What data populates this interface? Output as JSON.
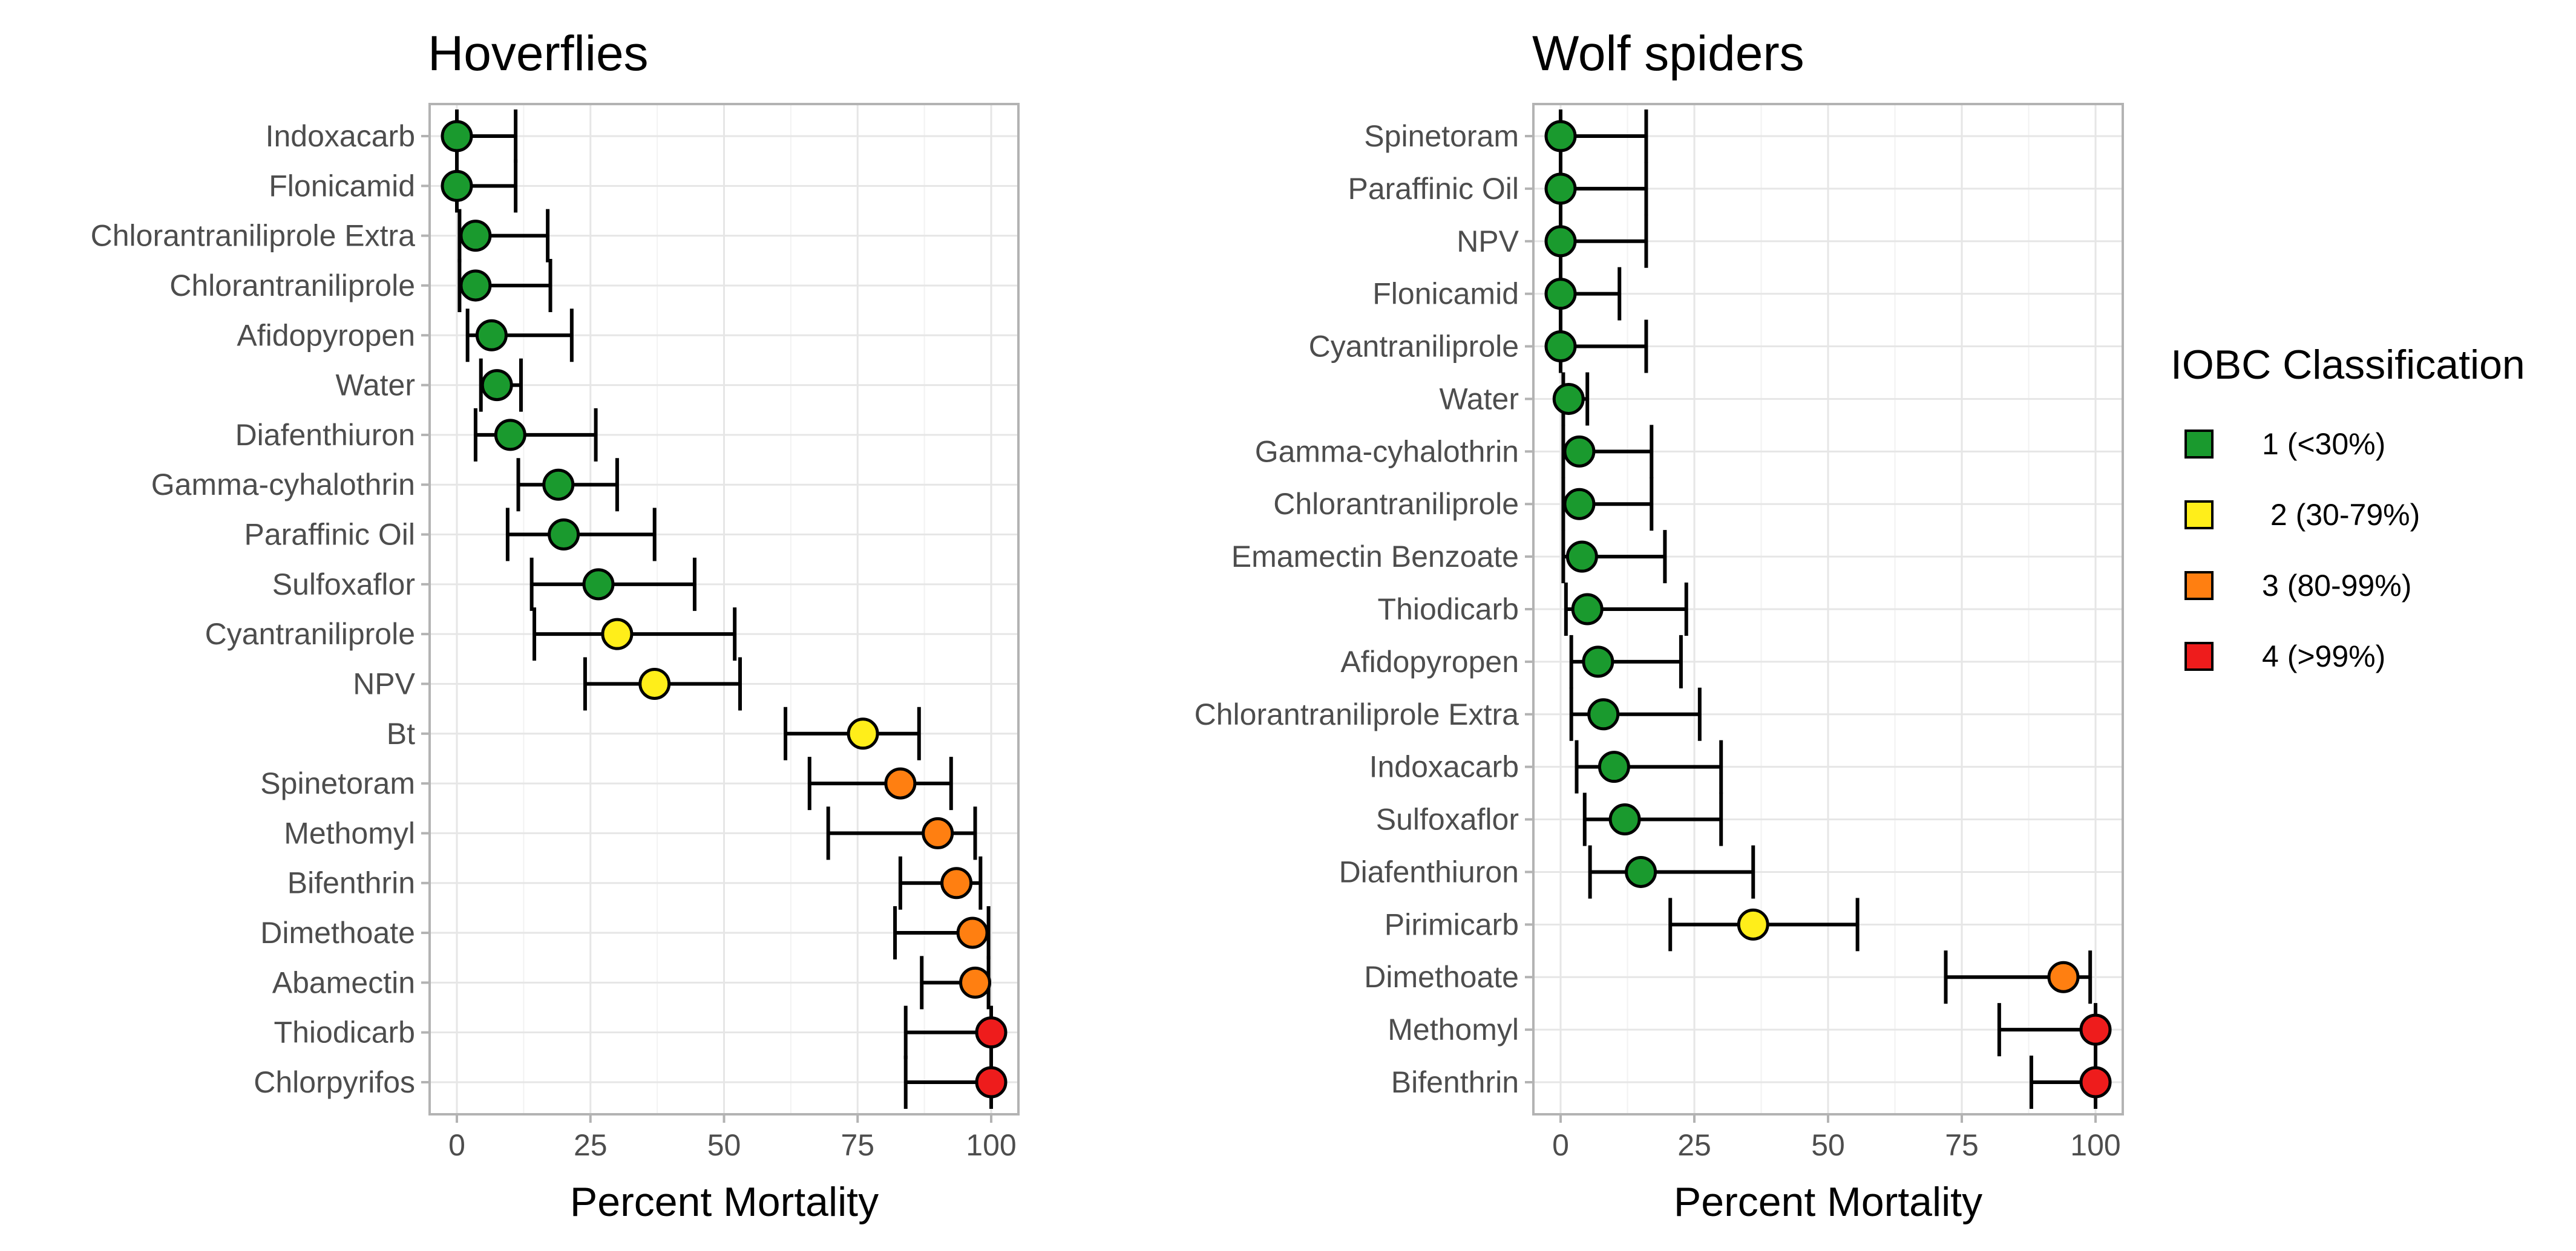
{
  "chart_data": [
    {
      "type": "scatter",
      "subtype": "dot-with-error-bars",
      "title": "Hoverflies",
      "xlabel": "Percent Mortality",
      "ylabel": "",
      "xlim": [
        0,
        100
      ],
      "xticks": [
        0,
        25,
        50,
        75,
        100
      ],
      "grid": true,
      "points": [
        {
          "label": "Indoxacarb",
          "value": 0,
          "lo": 0,
          "hi": 11,
          "class": 1
        },
        {
          "label": "Flonicamid",
          "value": 0,
          "lo": 0,
          "hi": 11,
          "class": 1
        },
        {
          "label": "Chlorantraniliprole Extra",
          "value": 3.5,
          "lo": 0.5,
          "hi": 17,
          "class": 1
        },
        {
          "label": "Chlorantraniliprole",
          "value": 3.5,
          "lo": 0.5,
          "hi": 17.5,
          "class": 1
        },
        {
          "label": "Afidopyropen",
          "value": 6.5,
          "lo": 2,
          "hi": 21.5,
          "class": 1
        },
        {
          "label": "Water",
          "value": 7.5,
          "lo": 4.5,
          "hi": 12,
          "class": 1
        },
        {
          "label": "Diafenthiuron",
          "value": 10,
          "lo": 3.5,
          "hi": 26,
          "class": 1
        },
        {
          "label": "Gamma-cyhalothrin",
          "value": 19,
          "lo": 11.5,
          "hi": 30,
          "class": 1
        },
        {
          "label": "Paraffinic Oil",
          "value": 20,
          "lo": 9.5,
          "hi": 37,
          "class": 1
        },
        {
          "label": "Sulfoxaflor",
          "value": 26.5,
          "lo": 14,
          "hi": 44.5,
          "class": 1
        },
        {
          "label": "Cyantraniliprole",
          "value": 30,
          "lo": 14.5,
          "hi": 52,
          "class": 2
        },
        {
          "label": "NPV",
          "value": 37,
          "lo": 24,
          "hi": 53,
          "class": 2
        },
        {
          "label": "Bt",
          "value": 76,
          "lo": 61.5,
          "hi": 86.5,
          "class": 2
        },
        {
          "label": "Spinetoram",
          "value": 83,
          "lo": 66,
          "hi": 92.5,
          "class": 3
        },
        {
          "label": "Methomyl",
          "value": 90,
          "lo": 69.5,
          "hi": 97,
          "class": 3
        },
        {
          "label": "Bifenthrin",
          "value": 93.5,
          "lo": 83,
          "hi": 98,
          "class": 3
        },
        {
          "label": "Dimethoate",
          "value": 96.5,
          "lo": 82,
          "hi": 99.5,
          "class": 3
        },
        {
          "label": "Abamectin",
          "value": 97,
          "lo": 87,
          "hi": 99.5,
          "class": 3
        },
        {
          "label": "Thiodicarb",
          "value": 100,
          "lo": 84,
          "hi": 100,
          "class": 4
        },
        {
          "label": "Chlorpyrifos",
          "value": 100,
          "lo": 84,
          "hi": 100,
          "class": 4
        }
      ]
    },
    {
      "type": "scatter",
      "subtype": "dot-with-error-bars",
      "title": "Wolf spiders",
      "xlabel": "Percent Mortality",
      "ylabel": "",
      "xlim": [
        0,
        100
      ],
      "xticks": [
        0,
        25,
        50,
        75,
        100
      ],
      "grid": true,
      "points": [
        {
          "label": "Spinetoram",
          "value": 0,
          "lo": 0,
          "hi": 16,
          "class": 1
        },
        {
          "label": "Paraffinic Oil",
          "value": 0,
          "lo": 0,
          "hi": 16,
          "class": 1
        },
        {
          "label": "NPV",
          "value": 0,
          "lo": 0,
          "hi": 16,
          "class": 1
        },
        {
          "label": "Flonicamid",
          "value": 0,
          "lo": 0,
          "hi": 11,
          "class": 1
        },
        {
          "label": "Cyantraniliprole",
          "value": 0,
          "lo": 0,
          "hi": 16,
          "class": 1
        },
        {
          "label": "Water",
          "value": 1.5,
          "lo": 0.5,
          "hi": 5,
          "class": 1
        },
        {
          "label": "Gamma-cyhalothrin",
          "value": 3.5,
          "lo": 0.5,
          "hi": 17,
          "class": 1
        },
        {
          "label": "Chlorantraniliprole",
          "value": 3.5,
          "lo": 0.5,
          "hi": 17,
          "class": 1
        },
        {
          "label": "Emamectin Benzoate",
          "value": 4,
          "lo": 0.5,
          "hi": 19.5,
          "class": 1
        },
        {
          "label": "Thiodicarb",
          "value": 5,
          "lo": 1,
          "hi": 23.5,
          "class": 1
        },
        {
          "label": "Afidopyropen",
          "value": 7,
          "lo": 2,
          "hi": 22.5,
          "class": 1
        },
        {
          "label": "Chlorantraniliprole Extra",
          "value": 8,
          "lo": 2,
          "hi": 26,
          "class": 1
        },
        {
          "label": "Indoxacarb",
          "value": 10,
          "lo": 3,
          "hi": 30,
          "class": 1
        },
        {
          "label": "Sulfoxaflor",
          "value": 12,
          "lo": 4.5,
          "hi": 30,
          "class": 1
        },
        {
          "label": "Diafenthiuron",
          "value": 15,
          "lo": 5.5,
          "hi": 36,
          "class": 1
        },
        {
          "label": "Pirimicarb",
          "value": 36,
          "lo": 20.5,
          "hi": 55.5,
          "class": 2
        },
        {
          "label": "Dimethoate",
          "value": 94,
          "lo": 72,
          "hi": 99,
          "class": 3
        },
        {
          "label": "Methomyl",
          "value": 100,
          "lo": 82,
          "hi": 100,
          "class": 4
        },
        {
          "label": "Bifenthrin",
          "value": 100,
          "lo": 88,
          "hi": 100,
          "class": 4
        }
      ]
    }
  ],
  "legend": {
    "title": "IOBC Classification",
    "placement": "right",
    "items": [
      {
        "class": 1,
        "label": "1 (<30%)",
        "color": "#1a9a2e"
      },
      {
        "class": 2,
        "label": " 2 (30-79%)",
        "color": "#ffee1a"
      },
      {
        "class": 3,
        "label": "3 (80-99%)",
        "color": "#ff7f11"
      },
      {
        "class": 4,
        "label": "4 (>99%)",
        "color": "#ee1c1c"
      }
    ]
  },
  "colors": {
    "1": "#1a9a2e",
    "2": "#ffee1a",
    "3": "#ff7f11",
    "4": "#ee1c1c"
  }
}
